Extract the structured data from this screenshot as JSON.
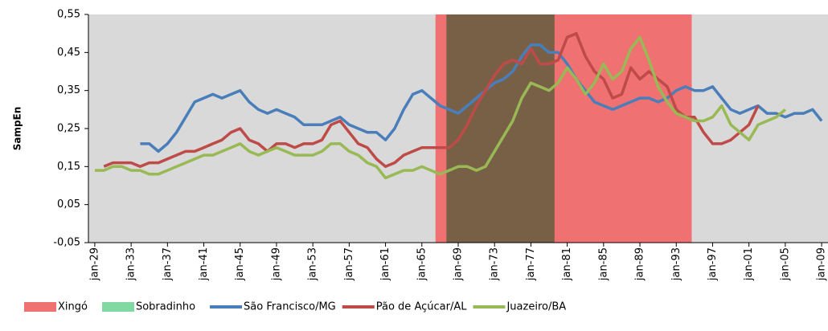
{
  "chart_data": {
    "type": "line",
    "y_label": "SampEn",
    "xlim": [
      1928.3,
      2009.7
    ],
    "ylim": [
      -0.05,
      0.55
    ],
    "yticks": [
      {
        "value": -0.05,
        "label": "-0,05"
      },
      {
        "value": 0.05,
        "label": "0,05"
      },
      {
        "value": 0.15,
        "label": "0,15"
      },
      {
        "value": 0.25,
        "label": "0,25"
      },
      {
        "value": 0.35,
        "label": "0,35"
      },
      {
        "value": 0.45,
        "label": "0,45"
      },
      {
        "value": 0.55,
        "label": "0,55"
      }
    ],
    "xticks": [
      {
        "value": 1929,
        "label": "jan-29"
      },
      {
        "value": 1933,
        "label": "jan-33"
      },
      {
        "value": 1937,
        "label": "jan-37"
      },
      {
        "value": 1941,
        "label": "jan-41"
      },
      {
        "value": 1945,
        "label": "jan-45"
      },
      {
        "value": 1949,
        "label": "jan-49"
      },
      {
        "value": 1953,
        "label": "jan-53"
      },
      {
        "value": 1957,
        "label": "jan-57"
      },
      {
        "value": 1961,
        "label": "jan-61"
      },
      {
        "value": 1965,
        "label": "jan-65"
      },
      {
        "value": 1969,
        "label": "jan-69"
      },
      {
        "value": 1973,
        "label": "jan-73"
      },
      {
        "value": 1977,
        "label": "jan-77"
      },
      {
        "value": 1981,
        "label": "jan-81"
      },
      {
        "value": 1985,
        "label": "jan-85"
      },
      {
        "value": 1989,
        "label": "jan-89"
      },
      {
        "value": 1993,
        "label": "jan-93"
      },
      {
        "value": 1997,
        "label": "jan-97"
      },
      {
        "value": 2001,
        "label": "jan-01"
      },
      {
        "value": 2005,
        "label": "jan-05"
      },
      {
        "value": 2009,
        "label": "jan-09"
      }
    ],
    "background": "#d9d9d9",
    "regions": [
      {
        "name": "Xingó",
        "color": "#f07171",
        "start": 1966.5,
        "end": 1994.7
      },
      {
        "name": "Sobradinho",
        "color": "#7fd9a0",
        "start": 1967.7,
        "end": 1979.6
      }
    ],
    "x": [
      1929,
      1930,
      1931,
      1932,
      1933,
      1934,
      1935,
      1936,
      1937,
      1938,
      1939,
      1940,
      1941,
      1942,
      1943,
      1944,
      1945,
      1946,
      1947,
      1948,
      1949,
      1950,
      1951,
      1952,
      1953,
      1954,
      1955,
      1956,
      1957,
      1958,
      1959,
      1960,
      1961,
      1962,
      1963,
      1964,
      1965,
      1966,
      1967,
      1968,
      1969,
      1970,
      1971,
      1972,
      1973,
      1974,
      1975,
      1976,
      1977,
      1978,
      1979,
      1980,
      1981,
      1982,
      1983,
      1984,
      1985,
      1986,
      1987,
      1988,
      1989,
      1990,
      1991,
      1992,
      1993,
      1994,
      1995,
      1996,
      1997,
      1998,
      1999,
      2000,
      2001,
      2002,
      2003,
      2004,
      2005,
      2006,
      2007,
      2008,
      2009
    ],
    "series": [
      {
        "name": "São Francisco/MG",
        "color": "#4a7ebb",
        "values": [
          null,
          null,
          null,
          null,
          null,
          0.21,
          0.21,
          0.19,
          0.21,
          0.24,
          0.28,
          0.32,
          0.33,
          0.34,
          0.33,
          0.34,
          0.35,
          0.32,
          0.3,
          0.29,
          0.3,
          0.29,
          0.28,
          0.26,
          0.26,
          0.26,
          0.27,
          0.28,
          0.26,
          0.25,
          0.24,
          0.24,
          0.22,
          0.25,
          0.3,
          0.34,
          0.35,
          0.33,
          0.31,
          0.3,
          0.29,
          0.31,
          0.33,
          0.35,
          0.37,
          0.38,
          0.4,
          0.44,
          0.47,
          0.47,
          0.45,
          0.45,
          0.42,
          0.38,
          0.35,
          0.32,
          0.31,
          0.3,
          0.31,
          0.32,
          0.33,
          0.33,
          0.32,
          0.33,
          0.35,
          0.36,
          0.35,
          0.35,
          0.36,
          0.33,
          0.3,
          0.29,
          0.3,
          0.31,
          0.29,
          0.29,
          0.28,
          0.29,
          0.29,
          0.3,
          0.27
        ]
      },
      {
        "name": "Pão de Açúcar/AL",
        "color": "#be4b48",
        "values": [
          null,
          0.15,
          0.16,
          0.16,
          0.16,
          0.15,
          0.16,
          0.16,
          0.17,
          0.18,
          0.19,
          0.19,
          0.2,
          0.21,
          0.22,
          0.24,
          0.25,
          0.22,
          0.21,
          0.19,
          0.21,
          0.21,
          0.2,
          0.21,
          0.21,
          0.22,
          0.26,
          0.27,
          0.24,
          0.21,
          0.2,
          0.17,
          0.15,
          0.16,
          0.18,
          0.19,
          0.2,
          0.2,
          0.2,
          0.2,
          0.22,
          0.26,
          0.31,
          0.35,
          0.39,
          0.42,
          0.43,
          0.42,
          0.46,
          0.42,
          0.42,
          0.43,
          0.49,
          0.5,
          0.44,
          0.4,
          0.38,
          0.33,
          0.34,
          0.41,
          0.38,
          0.4,
          0.38,
          0.36,
          0.3,
          0.28,
          0.28,
          0.24,
          0.21,
          0.21,
          0.22,
          0.24,
          0.26,
          0.31,
          null,
          null,
          null,
          null,
          null,
          null,
          null
        ]
      },
      {
        "name": "Juazeiro/BA",
        "color": "#98b954",
        "values": [
          0.14,
          0.14,
          0.15,
          0.15,
          0.14,
          0.14,
          0.13,
          0.13,
          0.14,
          0.15,
          0.16,
          0.17,
          0.18,
          0.18,
          0.19,
          0.2,
          0.21,
          0.19,
          0.18,
          0.19,
          0.2,
          0.19,
          0.18,
          0.18,
          0.18,
          0.19,
          0.21,
          0.21,
          0.19,
          0.18,
          0.16,
          0.15,
          0.12,
          0.13,
          0.14,
          0.14,
          0.15,
          0.14,
          0.13,
          0.14,
          0.15,
          0.15,
          0.14,
          0.15,
          0.19,
          0.23,
          0.27,
          0.33,
          0.37,
          0.36,
          0.35,
          0.37,
          0.41,
          0.38,
          0.34,
          0.37,
          0.42,
          0.38,
          0.4,
          0.46,
          0.49,
          0.43,
          0.36,
          0.32,
          0.29,
          0.28,
          0.27,
          0.27,
          0.28,
          0.31,
          0.26,
          0.24,
          0.22,
          0.26,
          0.27,
          0.28,
          0.3,
          null,
          null,
          null,
          null
        ]
      }
    ]
  }
}
